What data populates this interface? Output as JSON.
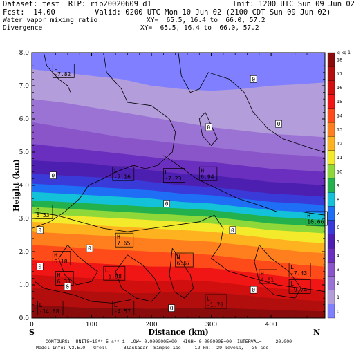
{
  "header": {
    "dataset": "Dataset: test  RIP: rip20020609 d1",
    "init": "Init: 1200 UTC Sun 09 Jun 02",
    "fcst": "Fcst:  14.00",
    "valid": "Valid: 0200 UTC Mon 10 Jun 02 (2100 CDT Sun 09 Jun 02)",
    "field1": "Water vapor mixing ratio",
    "xy1": "XY=  65.5, 16.4 to  66.0, 57.2",
    "field2": "Divergence",
    "xy2": "XY=  65.5, 16.4 to  66.0, 57.2"
  },
  "footer": {
    "line1": "CONTOURS:  UNITS=10**-5 s**-1  LOW= 0.000000E+00  HIGH= 0.000000E+00  INTERVAL=     20.000",
    "line2": "Model info: V3.5.0   Grell      Blackadar  Simple ice     12 km,  29 levels,   30 sec"
  },
  "chart_data": {
    "type": "heatmap",
    "xlabel": "Distance (km)",
    "ylabel": "Height (km)",
    "xlim": [
      0,
      490
    ],
    "ylim": [
      0,
      8
    ],
    "x_ticks": [
      "0",
      "100",
      "200",
      "300",
      "400"
    ],
    "y_ticks": [
      "0.0",
      "1.0",
      "2.0",
      "3.0",
      "4.0",
      "5.0",
      "6.0",
      "7.0",
      "8.0"
    ],
    "left_endpoint_label": "S",
    "right_endpoint_label": "N",
    "colorbar": {
      "units": "g kg-1",
      "levels": [
        "0",
        "1",
        "2",
        "3",
        "4",
        "5",
        "6",
        "7",
        "8",
        "9",
        "10",
        "11",
        "12",
        "13",
        "14",
        "15",
        "16",
        "17",
        "18"
      ],
      "colors": [
        "#7f7fff",
        "#b39ddb",
        "#9b73d4",
        "#8a55c9",
        "#6a2fbf",
        "#4d1fb0",
        "#3a3ad8",
        "#1e6ff5",
        "#13c2d8",
        "#22b14c",
        "#8ed83a",
        "#f2ea2a",
        "#ffb21f",
        "#ff7f1e",
        "#ff4a1a",
        "#f01616",
        "#d10f0f",
        "#b20e0e",
        "#8a0b0b"
      ]
    },
    "band_tops_km": {
      "x": [
        0,
        50,
        100,
        150,
        200,
        250,
        300,
        350,
        400,
        450,
        490
      ],
      "levels": [
        {
          "value": 18,
          "y": [
            0.4,
            0.35,
            0.3,
            0.3,
            0.28,
            0.3,
            0.32,
            0.28,
            0.25,
            0.22,
            0.2
          ]
        },
        {
          "value": 17,
          "y": [
            0.9,
            0.85,
            0.8,
            0.75,
            0.75,
            0.8,
            0.78,
            0.7,
            0.6,
            0.55,
            0.5
          ]
        },
        {
          "value": 16,
          "y": [
            1.3,
            1.25,
            1.2,
            1.15,
            1.1,
            1.15,
            1.1,
            1.0,
            0.9,
            0.85,
            0.8
          ]
        },
        {
          "value": 15,
          "y": [
            1.75,
            1.7,
            1.65,
            1.6,
            1.55,
            1.55,
            1.5,
            1.4,
            1.3,
            1.2,
            1.15
          ]
        },
        {
          "value": 14,
          "y": [
            2.2,
            2.15,
            2.1,
            2.05,
            2.0,
            1.95,
            1.9,
            1.8,
            1.7,
            1.6,
            1.55
          ]
        },
        {
          "value": 13,
          "y": [
            2.6,
            2.55,
            2.5,
            2.45,
            2.4,
            2.35,
            2.3,
            2.2,
            2.1,
            2.0,
            1.95
          ]
        },
        {
          "value": 12,
          "y": [
            2.9,
            2.85,
            2.8,
            2.75,
            2.7,
            2.65,
            2.6,
            2.5,
            2.4,
            2.3,
            2.25
          ]
        },
        {
          "value": 11,
          "y": [
            3.15,
            3.1,
            3.05,
            3.0,
            2.95,
            2.9,
            2.85,
            2.75,
            2.65,
            2.6,
            2.55
          ]
        },
        {
          "value": 10,
          "y": [
            3.35,
            3.3,
            3.25,
            3.2,
            3.15,
            3.1,
            3.05,
            2.95,
            2.85,
            2.8,
            2.75
          ]
        },
        {
          "value": 9,
          "y": [
            3.55,
            3.5,
            3.45,
            3.4,
            3.35,
            3.3,
            3.25,
            3.15,
            3.05,
            3.0,
            2.95
          ]
        },
        {
          "value": 8,
          "y": [
            3.8,
            3.75,
            3.7,
            3.65,
            3.6,
            3.5,
            3.45,
            3.35,
            3.25,
            3.2,
            3.15
          ]
        },
        {
          "value": 7,
          "y": [
            4.05,
            4.0,
            3.95,
            3.9,
            3.85,
            3.75,
            3.7,
            3.6,
            3.5,
            3.45,
            3.4
          ]
        },
        {
          "value": 6,
          "y": [
            4.35,
            4.3,
            4.25,
            4.2,
            4.1,
            4.0,
            3.95,
            3.85,
            3.75,
            3.7,
            3.65
          ]
        },
        {
          "value": 5,
          "y": [
            4.75,
            4.7,
            4.65,
            4.55,
            4.45,
            4.35,
            4.3,
            4.2,
            4.1,
            4.05,
            4.0
          ]
        },
        {
          "value": 4,
          "y": [
            5.25,
            5.15,
            5.05,
            4.95,
            4.85,
            4.75,
            4.7,
            4.6,
            4.5,
            4.45,
            4.4
          ]
        },
        {
          "value": 3,
          "y": [
            5.9,
            5.75,
            5.6,
            5.45,
            5.35,
            5.25,
            5.15,
            5.05,
            4.95,
            4.9,
            4.85
          ]
        },
        {
          "value": 2,
          "y": [
            6.6,
            6.5,
            6.35,
            6.2,
            6.05,
            5.9,
            5.75,
            5.65,
            5.55,
            5.5,
            5.45
          ]
        },
        {
          "value": 1,
          "y": [
            7.5,
            7.4,
            7.3,
            7.2,
            7.0,
            6.9,
            6.85,
            6.9,
            7.0,
            7.05,
            7.1
          ]
        }
      ]
    },
    "divergence_contours": [
      [
        [
          120,
          8.0
        ],
        [
          125,
          7.4
        ],
        [
          150,
          6.9
        ],
        [
          160,
          6.5
        ],
        [
          200,
          6.4
        ],
        [
          230,
          6.0
        ],
        [
          240,
          5.6
        ],
        [
          235,
          5.0
        ],
        [
          210,
          4.6
        ],
        [
          190,
          4.5
        ],
        [
          170,
          4.6
        ],
        [
          140,
          4.4
        ],
        [
          120,
          4.2
        ],
        [
          95,
          4.0
        ],
        [
          80,
          3.6
        ],
        [
          55,
          3.2
        ],
        [
          30,
          2.9
        ],
        [
          0,
          2.7
        ]
      ],
      [
        [
          20,
          8.0
        ],
        [
          25,
          7.6
        ],
        [
          45,
          7.2
        ],
        [
          60,
          7.0
        ],
        [
          65,
          6.8
        ]
      ],
      [
        [
          245,
          8.0
        ],
        [
          250,
          7.3
        ],
        [
          265,
          6.8
        ],
        [
          280,
          6.9
        ],
        [
          295,
          7.4
        ],
        [
          330,
          7.2
        ],
        [
          355,
          6.8
        ],
        [
          370,
          6.2
        ],
        [
          395,
          5.7
        ],
        [
          420,
          5.4
        ],
        [
          470,
          5.1
        ],
        [
          490,
          5.0
        ]
      ],
      [
        [
          290,
          6.2
        ],
        [
          300,
          5.8
        ],
        [
          310,
          5.4
        ],
        [
          300,
          5.2
        ],
        [
          285,
          5.5
        ],
        [
          280,
          6.0
        ],
        [
          290,
          6.2
        ]
      ],
      [
        [
          220,
          4.9
        ],
        [
          245,
          4.6
        ],
        [
          275,
          4.2
        ],
        [
          310,
          3.9
        ],
        [
          345,
          3.6
        ],
        [
          380,
          3.4
        ],
        [
          410,
          3.2
        ],
        [
          450,
          3.2
        ],
        [
          490,
          3.1
        ]
      ],
      [
        [
          0,
          3.2
        ],
        [
          40,
          3.1
        ],
        [
          80,
          2.9
        ],
        [
          120,
          2.7
        ],
        [
          160,
          2.6
        ],
        [
          200,
          2.7
        ],
        [
          240,
          2.8
        ],
        [
          280,
          2.9
        ],
        [
          305,
          3.1
        ],
        [
          320,
          2.7
        ],
        [
          315,
          2.2
        ],
        [
          300,
          1.8
        ],
        [
          330,
          1.4
        ],
        [
          370,
          1.2
        ],
        [
          410,
          1.0
        ],
        [
          450,
          0.9
        ],
        [
          490,
          0.8
        ]
      ],
      [
        [
          60,
          2.2
        ],
        [
          75,
          1.9
        ],
        [
          95,
          1.6
        ],
        [
          110,
          1.4
        ],
        [
          100,
          1.1
        ],
        [
          75,
          1.0
        ],
        [
          55,
          1.3
        ],
        [
          45,
          1.8
        ],
        [
          60,
          2.2
        ]
      ],
      [
        [
          160,
          1.9
        ],
        [
          185,
          1.6
        ],
        [
          205,
          1.2
        ],
        [
          215,
          0.8
        ],
        [
          200,
          0.5
        ],
        [
          175,
          0.6
        ],
        [
          150,
          0.9
        ],
        [
          140,
          1.4
        ],
        [
          160,
          1.9
        ]
      ],
      [
        [
          235,
          2.1
        ],
        [
          250,
          1.7
        ],
        [
          265,
          1.3
        ],
        [
          270,
          0.9
        ],
        [
          255,
          0.6
        ],
        [
          238,
          0.8
        ],
        [
          230,
          1.3
        ],
        [
          235,
          2.1
        ]
      ],
      [
        [
          380,
          2.2
        ],
        [
          400,
          1.8
        ],
        [
          430,
          1.4
        ],
        [
          450,
          0.9
        ],
        [
          440,
          0.6
        ],
        [
          405,
          0.7
        ],
        [
          380,
          1.1
        ],
        [
          372,
          1.7
        ],
        [
          380,
          2.2
        ]
      ],
      [
        [
          5,
          1.1
        ],
        [
          20,
          0.9
        ],
        [
          45,
          0.8
        ],
        [
          70,
          0.7
        ],
        [
          100,
          0.5
        ],
        [
          135,
          0.45
        ],
        [
          165,
          0.55
        ]
      ]
    ],
    "markers": [
      {
        "type": "L",
        "value": "-7.82",
        "x": 35,
        "y": 7.45
      },
      {
        "type": "L",
        "value": "-7.16",
        "x": 135,
        "y": 4.35
      },
      {
        "type": "L",
        "value": "-7.23",
        "x": 220,
        "y": 4.3
      },
      {
        "type": "H",
        "value": "6.94",
        "x": 280,
        "y": 4.35
      },
      {
        "type": "H",
        "value": "5.53",
        "x": 5,
        "y": 3.2
      },
      {
        "type": "H",
        "value": "10.66",
        "x": 458,
        "y": 3.0
      },
      {
        "type": "H",
        "value": "7.65",
        "x": 140,
        "y": 2.35
      },
      {
        "type": "H",
        "value": "6.18",
        "x": 35,
        "y": 1.8
      },
      {
        "type": "H",
        "value": "6.67",
        "x": 240,
        "y": 1.75
      },
      {
        "type": "H",
        "value": "6.33",
        "x": 40,
        "y": 1.2
      },
      {
        "type": "L",
        "value": "-5.98",
        "x": 120,
        "y": 1.35
      },
      {
        "type": "H",
        "value": "4.61",
        "x": 380,
        "y": 1.25
      },
      {
        "type": "L",
        "value": "-7.43",
        "x": 430,
        "y": 1.45
      },
      {
        "type": "L",
        "value": "-9.74",
        "x": 430,
        "y": 0.95
      },
      {
        "type": "L",
        "value": "-14.68",
        "x": 10,
        "y": 0.3
      },
      {
        "type": "L",
        "value": "-4.57",
        "x": 135,
        "y": 0.3
      },
      {
        "type": "L",
        "value": "-1.76",
        "x": 290,
        "y": 0.5
      }
    ],
    "zero_labels": [
      {
        "value": "0",
        "x": 370,
        "y": 7.2
      },
      {
        "value": "0",
        "x": 295,
        "y": 5.75
      },
      {
        "value": "0",
        "x": 412,
        "y": 5.85
      },
      {
        "value": "0",
        "x": 35,
        "y": 4.3
      },
      {
        "value": "0",
        "x": 225,
        "y": 3.45
      },
      {
        "value": "0",
        "x": 335,
        "y": 2.65
      },
      {
        "value": "0",
        "x": 13,
        "y": 2.65
      },
      {
        "value": "0",
        "x": 96,
        "y": 2.1
      },
      {
        "value": "0",
        "x": 13,
        "y": 1.55
      },
      {
        "value": "0",
        "x": 59,
        "y": 0.95
      },
      {
        "value": "0",
        "x": 370,
        "y": 0.85
      },
      {
        "value": "0",
        "x": 233,
        "y": 0.3
      }
    ]
  }
}
